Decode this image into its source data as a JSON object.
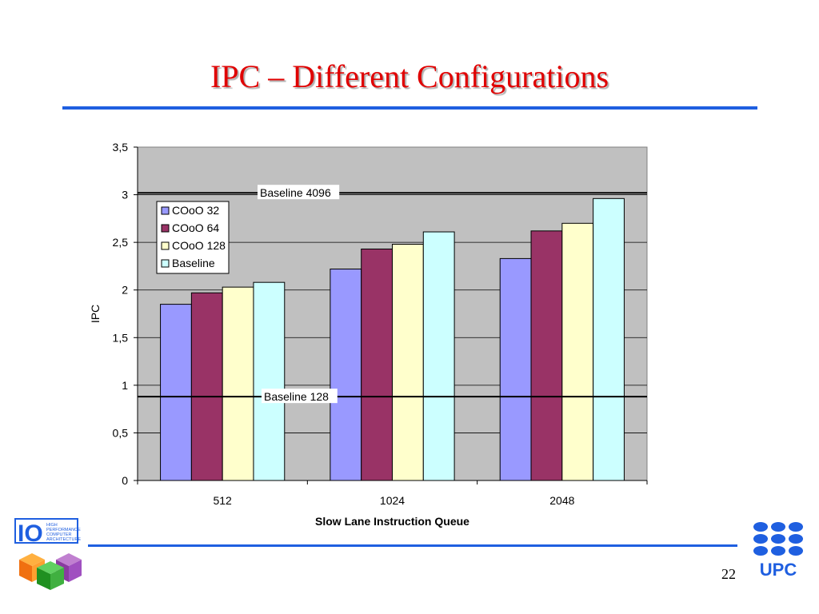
{
  "slide": {
    "title": "IPC – Different Configurations",
    "page_number": "22",
    "left_logo": "HIGH PERFORMANCE COMPUTER ARCHITECTURE",
    "right_logo": "UPC"
  },
  "colors": {
    "title": "#e00000",
    "rule": "#1f5fe0",
    "plot_bg": "#c0c0c0",
    "series": [
      "#9999ff",
      "#993366",
      "#ffffcc",
      "#ccffff"
    ]
  },
  "chart_data": {
    "type": "bar",
    "categories": [
      "512",
      "1024",
      "2048"
    ],
    "series": [
      {
        "name": "COoO 32",
        "values": [
          1.85,
          2.22,
          2.33
        ]
      },
      {
        "name": "COoO 64",
        "values": [
          1.97,
          2.43,
          2.62
        ]
      },
      {
        "name": "COoO 128",
        "values": [
          2.03,
          2.48,
          2.7
        ]
      },
      {
        "name": "Baseline",
        "values": [
          2.08,
          2.61,
          2.96
        ]
      }
    ],
    "reference_lines": [
      {
        "label": "Baseline 4096",
        "value": 3.02
      },
      {
        "label": "Baseline 128",
        "value": 0.88
      }
    ],
    "title": "",
    "xlabel": "Slow Lane Instruction Queue",
    "ylabel": "IPC",
    "ylim": [
      0,
      3.5
    ],
    "yticks": [
      "0",
      "0,5",
      "1",
      "1,5",
      "2",
      "2,5",
      "3",
      "3,5"
    ],
    "grid": true,
    "legend_position": "top-left"
  }
}
